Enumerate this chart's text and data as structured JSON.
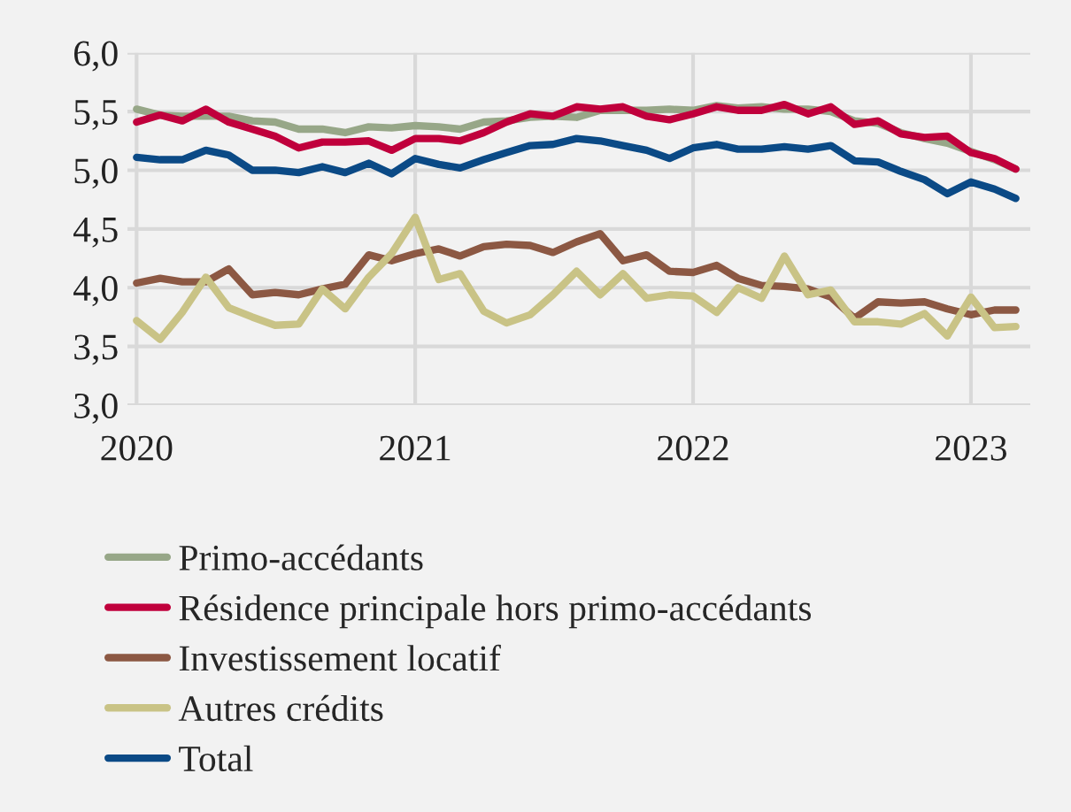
{
  "chart_data": {
    "type": "line",
    "x": [
      "2020-01",
      "2020-02",
      "2020-03",
      "2020-04",
      "2020-05",
      "2020-06",
      "2020-07",
      "2020-08",
      "2020-09",
      "2020-10",
      "2020-11",
      "2020-12",
      "2021-01",
      "2021-02",
      "2021-03",
      "2021-04",
      "2021-05",
      "2021-06",
      "2021-07",
      "2021-08",
      "2021-09",
      "2021-10",
      "2021-11",
      "2021-12",
      "2022-01",
      "2022-02",
      "2022-03",
      "2022-04",
      "2022-05",
      "2022-06",
      "2022-07",
      "2022-08",
      "2022-09",
      "2022-10",
      "2022-11",
      "2022-12",
      "2023-01",
      "2023-02",
      "2023-03"
    ],
    "series": [
      {
        "name": "Primo-accédants",
        "color": "#97a788",
        "values": [
          5.52,
          5.47,
          5.46,
          5.46,
          5.46,
          5.42,
          5.41,
          5.35,
          5.35,
          5.32,
          5.37,
          5.36,
          5.38,
          5.37,
          5.35,
          5.41,
          5.42,
          5.45,
          5.46,
          5.45,
          5.51,
          5.51,
          5.51,
          5.52,
          5.51,
          5.55,
          5.53,
          5.54,
          5.52,
          5.52,
          5.5,
          5.42,
          5.4,
          5.32,
          5.27,
          5.23,
          5.16,
          5.09,
          5.01
        ]
      },
      {
        "name": "Résidence principale hors primo-accédants",
        "color": "#c0003c",
        "values": [
          5.41,
          5.47,
          5.42,
          5.52,
          5.41,
          5.35,
          5.29,
          5.19,
          5.24,
          5.24,
          5.25,
          5.17,
          5.27,
          5.27,
          5.25,
          5.32,
          5.41,
          5.48,
          5.46,
          5.54,
          5.52,
          5.54,
          5.46,
          5.43,
          5.48,
          5.54,
          5.51,
          5.51,
          5.56,
          5.48,
          5.54,
          5.39,
          5.42,
          5.31,
          5.28,
          5.29,
          5.15,
          5.1,
          5.01
        ]
      },
      {
        "name": "Investissement locatif",
        "color": "#8c5843",
        "values": [
          4.04,
          4.08,
          4.05,
          4.05,
          4.16,
          3.94,
          3.96,
          3.94,
          3.99,
          4.03,
          4.28,
          4.23,
          4.29,
          4.33,
          4.27,
          4.35,
          4.37,
          4.36,
          4.3,
          4.39,
          4.46,
          4.23,
          4.28,
          4.14,
          4.13,
          4.19,
          4.08,
          4.02,
          4.01,
          3.99,
          3.92,
          3.74,
          3.88,
          3.87,
          3.88,
          3.82,
          3.77,
          3.81,
          3.81
        ]
      },
      {
        "name": "Autres crédits",
        "color": "#c9c386",
        "values": [
          3.72,
          3.56,
          3.79,
          4.09,
          3.83,
          3.75,
          3.68,
          3.69,
          3.99,
          3.82,
          4.09,
          4.29,
          4.6,
          4.07,
          4.12,
          3.8,
          3.7,
          3.77,
          3.94,
          4.14,
          3.94,
          4.12,
          3.91,
          3.94,
          3.93,
          3.79,
          4.0,
          3.91,
          4.27,
          3.94,
          3.98,
          3.71,
          3.71,
          3.69,
          3.78,
          3.59,
          3.92,
          3.66,
          3.67
        ]
      },
      {
        "name": "Total",
        "color": "#0b4a86",
        "values": [
          5.11,
          5.09,
          5.09,
          5.17,
          5.13,
          5.0,
          5.0,
          4.98,
          5.03,
          4.98,
          5.06,
          4.97,
          5.1,
          5.05,
          5.02,
          5.09,
          5.15,
          5.21,
          5.22,
          5.27,
          5.25,
          5.21,
          5.17,
          5.1,
          5.19,
          5.22,
          5.18,
          5.18,
          5.2,
          5.18,
          5.21,
          5.08,
          5.07,
          4.99,
          4.92,
          4.8,
          4.9,
          4.84,
          4.76
        ]
      }
    ],
    "xlim": [
      "2019-12-20",
      "2023-03-20"
    ],
    "xticks": [
      {
        "value": "2020-01-01",
        "label": "2020"
      },
      {
        "value": "2021-01-01",
        "label": "2021"
      },
      {
        "value": "2022-01-01",
        "label": "2022"
      },
      {
        "value": "2023-01-01",
        "label": "2023"
      }
    ],
    "ylim": [
      3,
      6
    ],
    "yticks": [
      {
        "value": 3,
        "label": "3,0"
      },
      {
        "value": 3.5,
        "label": "3,5"
      },
      {
        "value": 4,
        "label": "4,0"
      },
      {
        "value": 4.5,
        "label": "4,5"
      },
      {
        "value": 5,
        "label": "5,0"
      },
      {
        "value": 5.5,
        "label": "5,5"
      },
      {
        "value": 6,
        "label": "6,0"
      }
    ],
    "grid": true,
    "legend": "bottom",
    "marker": "none",
    "line_style": "solid"
  }
}
